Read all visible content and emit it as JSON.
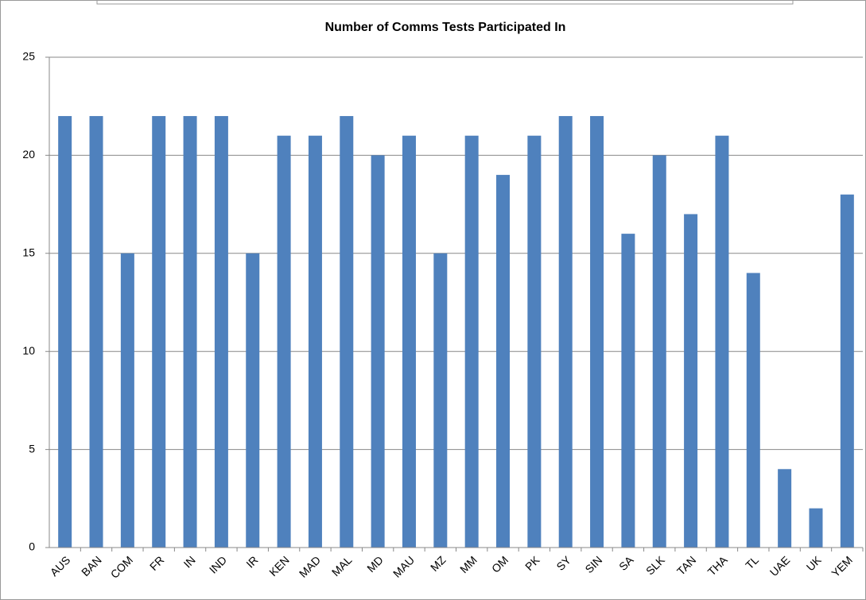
{
  "chart_data": {
    "type": "bar",
    "title": "Number of Comms  Tests Participated In",
    "categories": [
      "AUS",
      "BAN",
      "COM",
      "FR",
      "IN",
      "IND",
      "IR",
      "KEN",
      "MAD",
      "MAL",
      "MD",
      "MAU",
      "MZ",
      "MM",
      "OM",
      "PK",
      "SY",
      "SIN",
      "SA",
      "SLK",
      "TAN",
      "THA",
      "TL",
      "UAE",
      "UK",
      "YEM"
    ],
    "values": [
      22,
      22,
      15,
      22,
      22,
      22,
      15,
      21,
      21,
      22,
      20,
      21,
      15,
      21,
      19,
      21,
      22,
      22,
      16,
      20,
      17,
      21,
      14,
      4,
      2,
      18
    ],
    "color": "#4f81bd",
    "ylim": [
      0,
      25
    ],
    "yticks": [
      0,
      5,
      10,
      15,
      20,
      25
    ],
    "grid": true
  }
}
